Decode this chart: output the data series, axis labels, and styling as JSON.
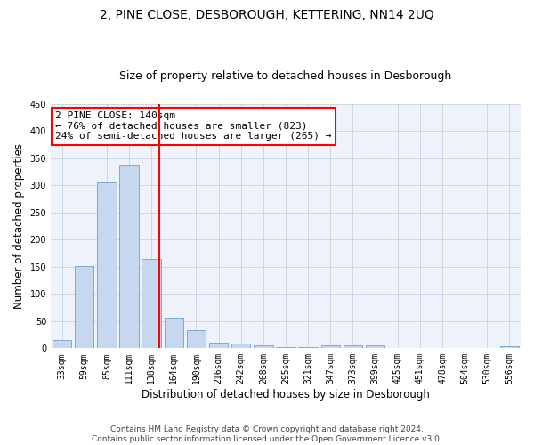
{
  "title": "2, PINE CLOSE, DESBOROUGH, KETTERING, NN14 2UQ",
  "subtitle": "Size of property relative to detached houses in Desborough",
  "xlabel": "Distribution of detached houses by size in Desborough",
  "ylabel": "Number of detached properties",
  "categories": [
    "33sqm",
    "59sqm",
    "85sqm",
    "111sqm",
    "138sqm",
    "164sqm",
    "190sqm",
    "216sqm",
    "242sqm",
    "268sqm",
    "295sqm",
    "321sqm",
    "347sqm",
    "373sqm",
    "399sqm",
    "425sqm",
    "451sqm",
    "478sqm",
    "504sqm",
    "530sqm",
    "556sqm"
  ],
  "values": [
    15,
    152,
    305,
    338,
    165,
    57,
    34,
    10,
    8,
    6,
    3,
    2,
    5,
    5,
    5,
    0,
    0,
    0,
    0,
    0,
    4
  ],
  "bar_color": "#c5d8f0",
  "bar_edge_color": "#7aadd4",
  "vline_bin_index": 4,
  "vline_color": "red",
  "annotation_text": "2 PINE CLOSE: 140sqm\n← 76% of detached houses are smaller (823)\n24% of semi-detached houses are larger (265) →",
  "annotation_box_color": "white",
  "annotation_box_edge_color": "red",
  "ylim": [
    0,
    450
  ],
  "yticks": [
    0,
    50,
    100,
    150,
    200,
    250,
    300,
    350,
    400,
    450
  ],
  "background_color": "#eef2fa",
  "grid_color": "#c8d0e0",
  "footer": "Contains HM Land Registry data © Crown copyright and database right 2024.\nContains public sector information licensed under the Open Government Licence v3.0.",
  "title_fontsize": 10,
  "subtitle_fontsize": 9,
  "xlabel_fontsize": 8.5,
  "ylabel_fontsize": 8.5,
  "tick_fontsize": 7,
  "footer_fontsize": 6.5,
  "annotation_fontsize": 8
}
